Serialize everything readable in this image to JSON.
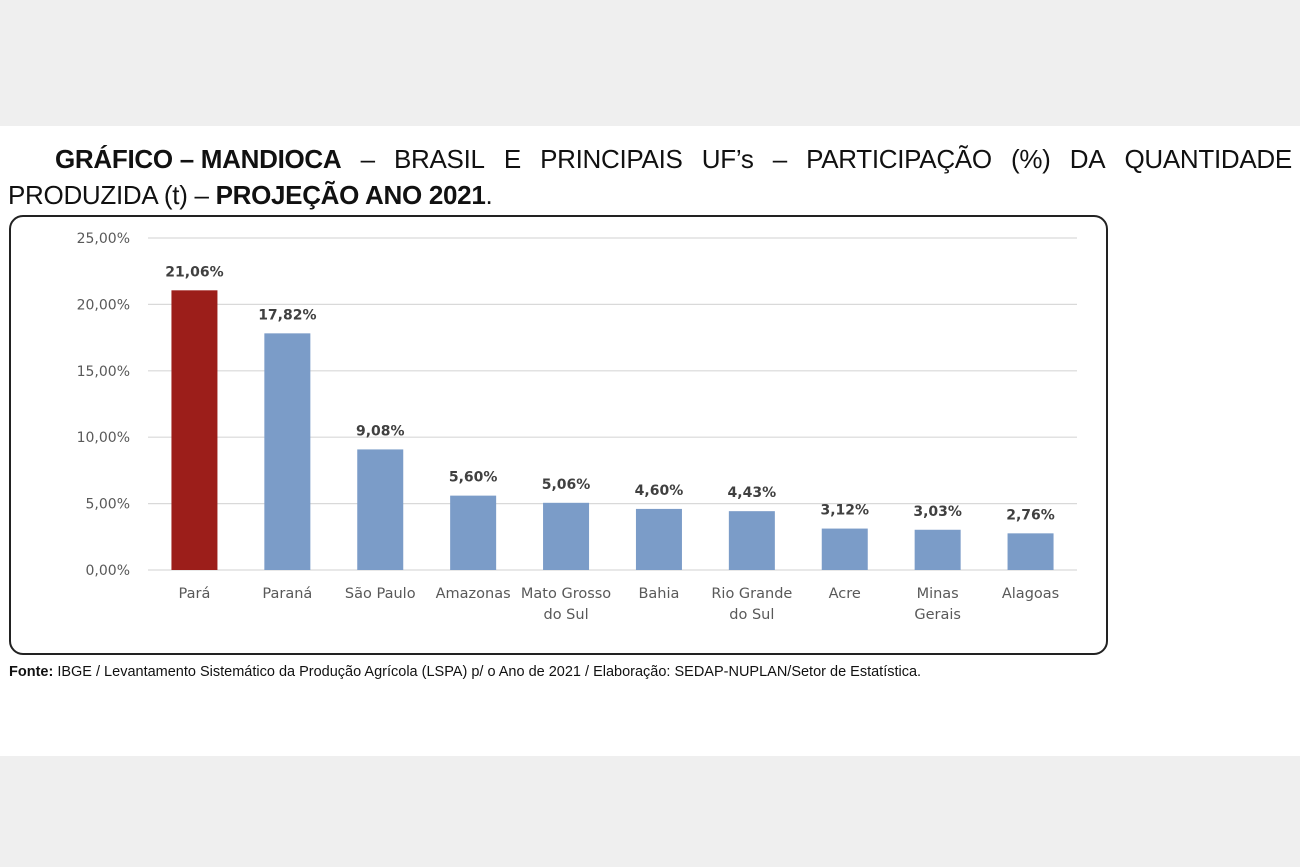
{
  "title": {
    "line1_bold": "GRÁFICO – MANDIOCA",
    "line1_words": [
      "–",
      "BRASIL",
      "E",
      "PRINCIPAIS",
      "UF’s",
      "–",
      "PARTICIPAÇÃO",
      "(%)",
      "DA",
      "QUANTIDADE"
    ],
    "line2_normal": "PRODUZIDA (t) – ",
    "line2_bold": "PROJEÇÃO ANO 2021",
    "line2_end": "."
  },
  "source": {
    "label": "Fonte:",
    "text": " IBGE / Levantamento Sistemático da Produção Agrícola (LSPA) p/ o Ano de 2021 / Elaboração: SEDAP-NUPLAN/Setor de Estatística."
  },
  "colors": {
    "highlight": "#9c1e1a",
    "bar": "#7b9cc8",
    "grid": "#d9d9d9",
    "tick_text": "#595959",
    "label_text": "#404040"
  },
  "chart_data": {
    "type": "bar",
    "categories": [
      [
        "Pará"
      ],
      [
        "Paraná"
      ],
      [
        "São Paulo"
      ],
      [
        "Amazonas"
      ],
      [
        "Mato Grosso",
        "do Sul"
      ],
      [
        "Bahia"
      ],
      [
        "Rio Grande",
        "do Sul"
      ],
      [
        "Acre"
      ],
      [
        "Minas",
        "Gerais"
      ],
      [
        "Alagoas"
      ]
    ],
    "values": [
      21.06,
      17.82,
      9.08,
      5.6,
      5.06,
      4.6,
      4.43,
      3.12,
      3.03,
      2.76
    ],
    "data_labels": [
      "21,06%",
      "17,82%",
      "9,08%",
      "5,60%",
      "5,06%",
      "4,60%",
      "4,43%",
      "3,12%",
      "3,03%",
      "2,76%"
    ],
    "highlighted_index": 0,
    "y_ticks": [
      0,
      5,
      10,
      15,
      20,
      25
    ],
    "y_tick_labels": [
      "0,00%",
      "5,00%",
      "10,00%",
      "15,00%",
      "20,00%",
      "25,00%"
    ],
    "ylim": [
      0,
      25
    ],
    "grid": true,
    "legend": false
  }
}
